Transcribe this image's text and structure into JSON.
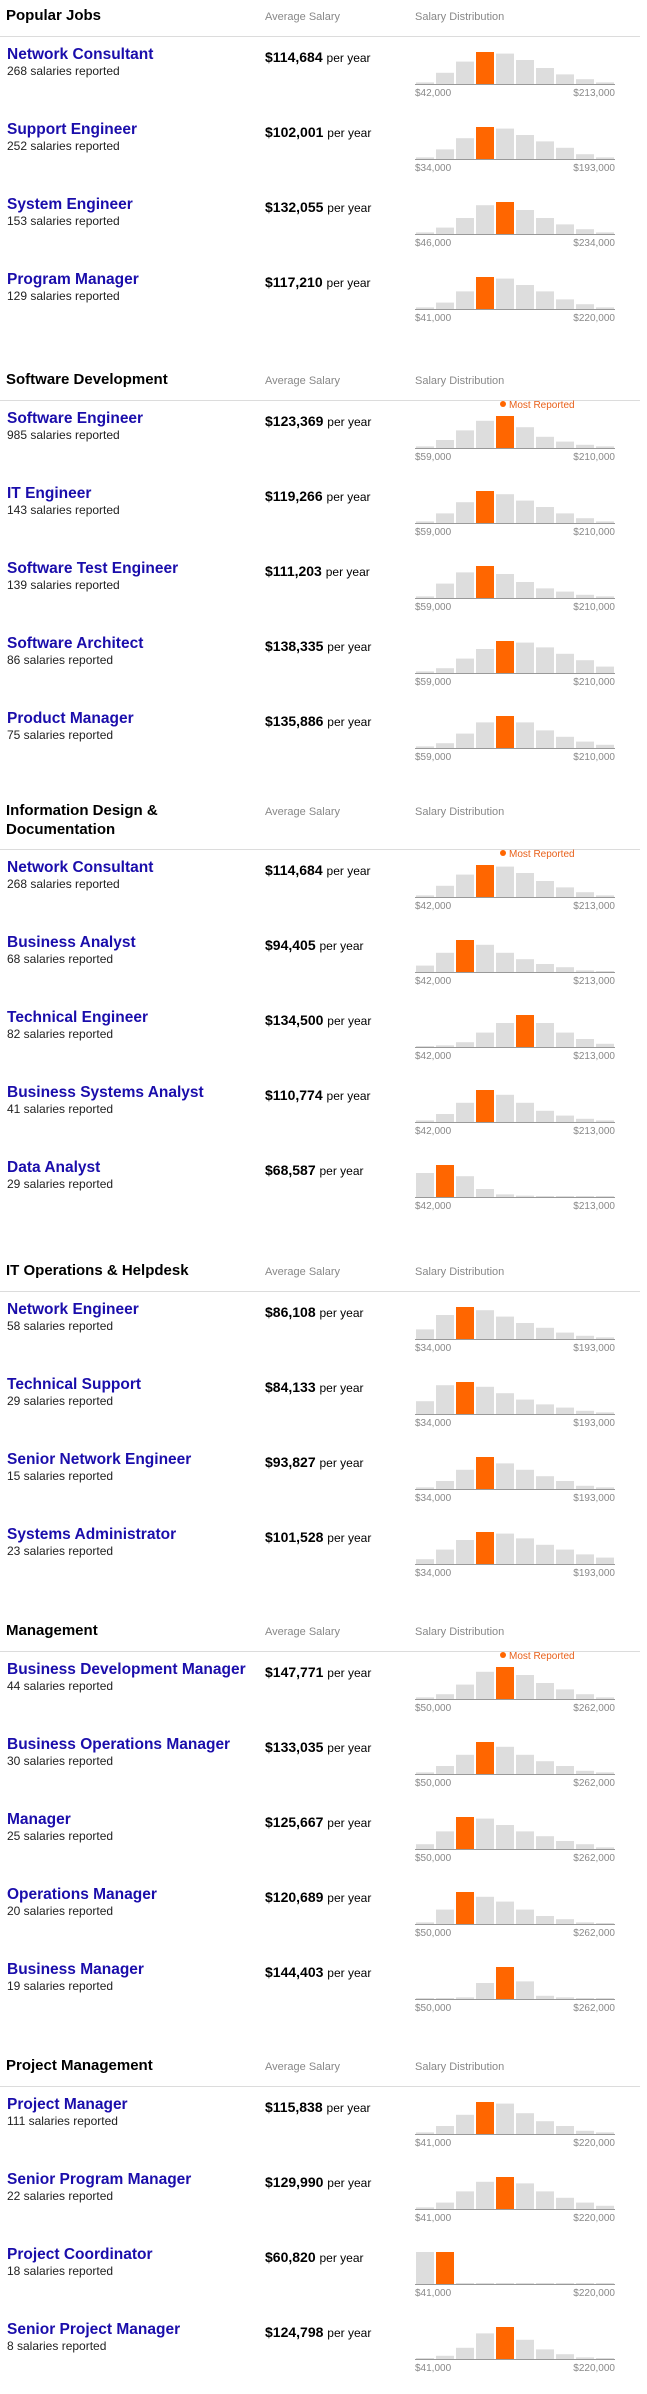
{
  "colors": {
    "link": "#1a0dab",
    "bar": "#dddddd",
    "highlight": "#ff6600",
    "axis": "#888888"
  },
  "labels": {
    "avg_salary": "Average Salary",
    "salary_dist": "Salary Distribution",
    "per_year": "per year",
    "most_reported": "Most Reported"
  },
  "sections": [
    {
      "title": "Popular Jobs",
      "jobs": [
        {
          "title": "Network Consultant",
          "count": "268 salaries reported",
          "salary": "$114,684",
          "min": "$42,000",
          "max": "$213,000",
          "bars": [
            0.05,
            0.35,
            0.7,
            1.0,
            0.95,
            0.75,
            0.5,
            0.3,
            0.15,
            0.05
          ],
          "hi": 3,
          "most": false
        },
        {
          "title": "Support Engineer",
          "count": "252 salaries reported",
          "salary": "$102,001",
          "min": "$34,000",
          "max": "$193,000",
          "bars": [
            0.05,
            0.3,
            0.65,
            1.0,
            0.95,
            0.75,
            0.55,
            0.35,
            0.15,
            0.05
          ],
          "hi": 3,
          "most": false
        },
        {
          "title": "System Engineer",
          "count": "153 salaries reported",
          "salary": "$132,055",
          "min": "$46,000",
          "max": "$234,000",
          "bars": [
            0.05,
            0.2,
            0.5,
            0.9,
            1.0,
            0.75,
            0.5,
            0.3,
            0.15,
            0.05
          ],
          "hi": 4,
          "most": false
        },
        {
          "title": "Program Manager",
          "count": "129 salaries reported",
          "salary": "$117,210",
          "min": "$41,000",
          "max": "$220,000",
          "bars": [
            0.05,
            0.2,
            0.55,
            1.0,
            0.95,
            0.75,
            0.55,
            0.3,
            0.15,
            0.05
          ],
          "hi": 3,
          "most": false
        }
      ]
    },
    {
      "title": "Software Development",
      "jobs": [
        {
          "title": "Software Engineer",
          "count": "985 salaries reported",
          "salary": "$123,369",
          "min": "$59,000",
          "max": "$210,000",
          "bars": [
            0.05,
            0.25,
            0.55,
            0.85,
            1.0,
            0.65,
            0.35,
            0.2,
            0.1,
            0.05
          ],
          "hi": 4,
          "most": true
        },
        {
          "title": "IT Engineer",
          "count": "143 salaries reported",
          "salary": "$119,266",
          "min": "$59,000",
          "max": "$210,000",
          "bars": [
            0.05,
            0.3,
            0.65,
            1.0,
            0.9,
            0.7,
            0.5,
            0.3,
            0.15,
            0.05
          ],
          "hi": 3,
          "most": false
        },
        {
          "title": "Software Test Engineer",
          "count": "139 salaries reported",
          "salary": "$111,203",
          "min": "$59,000",
          "max": "$210,000",
          "bars": [
            0.05,
            0.45,
            0.8,
            1.0,
            0.75,
            0.5,
            0.3,
            0.2,
            0.1,
            0.05
          ],
          "hi": 3,
          "most": false
        },
        {
          "title": "Software Architect",
          "count": "86 salaries reported",
          "salary": "$138,335",
          "min": "$59,000",
          "max": "$210,000",
          "bars": [
            0.05,
            0.15,
            0.45,
            0.75,
            1.0,
            0.95,
            0.8,
            0.6,
            0.4,
            0.2
          ],
          "hi": 4,
          "most": false
        },
        {
          "title": "Product Manager",
          "count": "75 salaries reported",
          "salary": "$135,886",
          "min": "$59,000",
          "max": "$210,000",
          "bars": [
            0.05,
            0.15,
            0.45,
            0.8,
            1.0,
            0.8,
            0.55,
            0.35,
            0.2,
            0.1
          ],
          "hi": 4,
          "most": false
        }
      ]
    },
    {
      "title": "Information Design & Documentation",
      "jobs": [
        {
          "title": "Network Consultant",
          "count": "268 salaries reported",
          "salary": "$114,684",
          "min": "$42,000",
          "max": "$213,000",
          "bars": [
            0.05,
            0.35,
            0.7,
            1.0,
            0.95,
            0.75,
            0.5,
            0.3,
            0.15,
            0.05
          ],
          "hi": 3,
          "most": true
        },
        {
          "title": "Business Analyst",
          "count": "68 salaries reported",
          "salary": "$94,405",
          "min": "$42,000",
          "max": "$213,000",
          "bars": [
            0.2,
            0.6,
            1.0,
            0.85,
            0.6,
            0.4,
            0.25,
            0.15,
            0.05,
            0.03
          ],
          "hi": 2,
          "most": false
        },
        {
          "title": "Technical Engineer",
          "count": "82 salaries reported",
          "salary": "$134,500",
          "min": "$42,000",
          "max": "$213,000",
          "bars": [
            0.03,
            0.05,
            0.15,
            0.45,
            0.75,
            1.0,
            0.75,
            0.45,
            0.25,
            0.1
          ],
          "hi": 5,
          "most": false
        },
        {
          "title": "Business Systems Analyst",
          "count": "41 salaries reported",
          "salary": "$110,774",
          "min": "$42,000",
          "max": "$213,000",
          "bars": [
            0.05,
            0.25,
            0.6,
            1.0,
            0.85,
            0.6,
            0.35,
            0.2,
            0.1,
            0.05
          ],
          "hi": 3,
          "most": false
        },
        {
          "title": "Data Analyst",
          "count": "29 salaries reported",
          "salary": "$68,587",
          "min": "$42,000",
          "max": "$213,000",
          "bars": [
            0.75,
            1.0,
            0.65,
            0.25,
            0.08,
            0.04,
            0.03,
            0.02,
            0.02,
            0.01
          ],
          "hi": 1,
          "most": false
        }
      ]
    },
    {
      "title": "IT Operations & Helpdesk",
      "jobs": [
        {
          "title": "Network Engineer",
          "count": "58 salaries reported",
          "salary": "$86,108",
          "min": "$34,000",
          "max": "$193,000",
          "bars": [
            0.3,
            0.75,
            1.0,
            0.9,
            0.7,
            0.5,
            0.35,
            0.2,
            0.1,
            0.05
          ],
          "hi": 2,
          "most": false
        },
        {
          "title": "Technical Support",
          "count": "29 salaries reported",
          "salary": "$84,133",
          "min": "$34,000",
          "max": "$193,000",
          "bars": [
            0.4,
            0.9,
            1.0,
            0.85,
            0.65,
            0.45,
            0.3,
            0.2,
            0.1,
            0.05
          ],
          "hi": 2,
          "most": false
        },
        {
          "title": "Senior Network Engineer",
          "count": "15 salaries reported",
          "salary": "$93,827",
          "min": "$34,000",
          "max": "$193,000",
          "bars": [
            0.05,
            0.25,
            0.6,
            1.0,
            0.8,
            0.6,
            0.4,
            0.25,
            0.1,
            0.05
          ],
          "hi": 3,
          "most": false
        },
        {
          "title": "Systems Administrator",
          "count": "23 salaries reported",
          "salary": "$101,528",
          "min": "$34,000",
          "max": "$193,000",
          "bars": [
            0.15,
            0.45,
            0.75,
            1.0,
            0.95,
            0.8,
            0.6,
            0.45,
            0.3,
            0.2
          ],
          "hi": 3,
          "most": false
        }
      ]
    },
    {
      "title": "Management",
      "jobs": [
        {
          "title": "Business Development Manager",
          "count": "44 salaries reported",
          "salary": "$147,771",
          "min": "$50,000",
          "max": "$262,000",
          "bars": [
            0.05,
            0.15,
            0.45,
            0.85,
            1.0,
            0.75,
            0.5,
            0.3,
            0.15,
            0.05
          ],
          "hi": 4,
          "most": true
        },
        {
          "title": "Business Operations Manager",
          "count": "30 salaries reported",
          "salary": "$133,035",
          "min": "$50,000",
          "max": "$262,000",
          "bars": [
            0.05,
            0.25,
            0.6,
            1.0,
            0.85,
            0.6,
            0.4,
            0.25,
            0.1,
            0.05
          ],
          "hi": 3,
          "most": false
        },
        {
          "title": "Manager",
          "count": "25 salaries reported",
          "salary": "$125,667",
          "min": "$50,000",
          "max": "$262,000",
          "bars": [
            0.15,
            0.55,
            1.0,
            0.95,
            0.75,
            0.55,
            0.4,
            0.25,
            0.15,
            0.05
          ],
          "hi": 2,
          "most": false
        },
        {
          "title": "Operations Manager",
          "count": "20 salaries reported",
          "salary": "$120,689",
          "min": "$50,000",
          "max": "$262,000",
          "bars": [
            0.05,
            0.45,
            1.0,
            0.85,
            0.7,
            0.45,
            0.25,
            0.15,
            0.05,
            0.03
          ],
          "hi": 2,
          "most": false
        },
        {
          "title": "Business Manager",
          "count": "19 salaries reported",
          "salary": "$144,403",
          "min": "$50,000",
          "max": "$262,000",
          "bars": [
            0.02,
            0.03,
            0.05,
            0.5,
            1.0,
            0.55,
            0.1,
            0.05,
            0.03,
            0.02
          ],
          "hi": 4,
          "most": false
        }
      ]
    },
    {
      "title": "Project Management",
      "jobs": [
        {
          "title": "Project Manager",
          "count": "111 salaries reported",
          "salary": "$115,838",
          "min": "$41,000",
          "max": "$220,000",
          "bars": [
            0.05,
            0.25,
            0.6,
            1.0,
            0.95,
            0.65,
            0.4,
            0.25,
            0.1,
            0.05
          ],
          "hi": 3,
          "most": false
        },
        {
          "title": "Senior Program Manager",
          "count": "22 salaries reported",
          "salary": "$129,990",
          "min": "$41,000",
          "max": "$220,000",
          "bars": [
            0.05,
            0.2,
            0.55,
            0.85,
            1.0,
            0.8,
            0.55,
            0.35,
            0.2,
            0.1
          ],
          "hi": 4,
          "most": false
        },
        {
          "title": "Project Coordinator",
          "count": "18 salaries reported",
          "salary": "$60,820",
          "min": "$41,000",
          "max": "$220,000",
          "bars": [
            1.0,
            1.0,
            0.02,
            0.01,
            0.01,
            0.01,
            0.01,
            0.01,
            0.01,
            0.01
          ],
          "hi": 1,
          "most": false
        },
        {
          "title": "Senior Project Manager",
          "count": "8 salaries reported",
          "salary": "$124,798",
          "min": "$41,000",
          "max": "$220,000",
          "bars": [
            0.03,
            0.1,
            0.35,
            0.8,
            1.0,
            0.6,
            0.3,
            0.15,
            0.05,
            0.02
          ],
          "hi": 4,
          "most": false
        }
      ]
    }
  ]
}
